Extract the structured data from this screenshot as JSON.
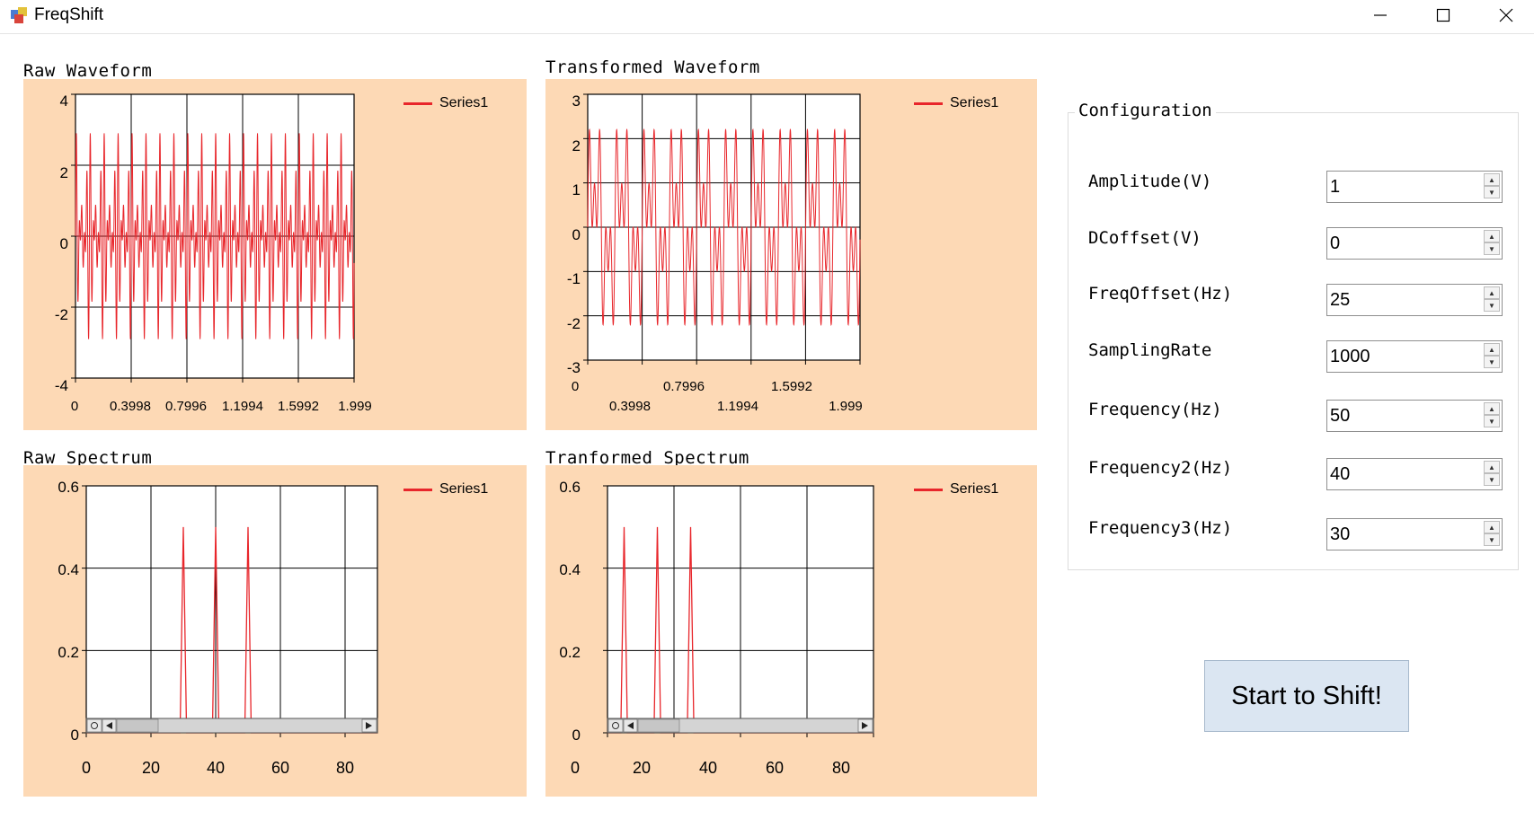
{
  "window": {
    "title": "FreqShift",
    "icon": "app-window-icon"
  },
  "charts": [
    {
      "caption": "Raw Waveform",
      "legend": "Series1",
      "yticks": [
        "4",
        "2",
        "0",
        "-2",
        "-4"
      ],
      "xticks": [
        "0",
        "0.3998",
        "0.7996",
        "1.1994",
        "1.5992",
        "1.999"
      ]
    },
    {
      "caption": "Transformed Waveform",
      "legend": "Series1",
      "yticks": [
        "3",
        "2",
        "1",
        "0",
        "-1",
        "-2",
        "-3"
      ],
      "xticks_upper": [
        "0",
        "0.7996",
        "1.5992"
      ],
      "xticks_lower": [
        "0.3998",
        "1.1994",
        "1.999"
      ]
    },
    {
      "caption": "Raw Spectrum",
      "legend": "Series1",
      "yticks": [
        "0.6",
        "0.4",
        "0.2",
        "0"
      ],
      "xticks": [
        "0",
        "20",
        "40",
        "60",
        "80"
      ]
    },
    {
      "caption": "Tranformed Spectrum",
      "legend": "Series1",
      "yticks": [
        "0.6",
        "0.4",
        "0.2",
        "0"
      ],
      "xticks": [
        "0",
        "20",
        "40",
        "60",
        "80"
      ]
    }
  ],
  "chart_data": [
    {
      "type": "line",
      "title": "Raw Waveform",
      "series": [
        {
          "name": "Series1"
        }
      ],
      "xlim": [
        0,
        1.999
      ],
      "ylim": [
        -4,
        4
      ],
      "grid": true,
      "legend": "top-right",
      "sampling_rate": 1000,
      "components_hz": [
        50,
        40,
        30
      ],
      "y_peak_approx": 2.9
    },
    {
      "type": "line",
      "title": "Transformed Waveform",
      "series": [
        {
          "name": "Series1"
        }
      ],
      "xlim": [
        0,
        1.999
      ],
      "ylim": [
        -3,
        3
      ],
      "grid": true,
      "legend": "top-right",
      "sampling_rate": 1000,
      "components_hz": [
        25,
        15,
        5
      ],
      "y_peak_approx": 2.2
    },
    {
      "type": "line",
      "title": "Raw Spectrum",
      "series": [
        {
          "name": "Series1",
          "x": [
            0,
            29,
            30,
            31,
            39,
            40,
            41,
            49,
            50,
            51,
            90
          ],
          "y": [
            0,
            0,
            0.5,
            0,
            0,
            0.5,
            0,
            0,
            0.5,
            0,
            0
          ]
        }
      ],
      "xlim": [
        0,
        90
      ],
      "ylim": [
        0,
        0.6
      ],
      "grid": true,
      "legend": "top-right"
    },
    {
      "type": "line",
      "title": "Tranformed Spectrum",
      "series": [
        {
          "name": "Series1",
          "x": [
            0,
            4,
            5,
            6,
            14,
            15,
            16,
            24,
            25,
            26,
            80
          ],
          "y": [
            0,
            0,
            0.5,
            0,
            0,
            0.5,
            0,
            0,
            0.5,
            0,
            0
          ]
        }
      ],
      "xlim": [
        0,
        80
      ],
      "ylim": [
        0,
        0.6
      ],
      "grid": true,
      "legend": "top-right"
    }
  ],
  "config": {
    "title": "Configuration",
    "fields": [
      {
        "label": "Amplitude(V)",
        "value": "1"
      },
      {
        "label": "DCoffset(V)",
        "value": "0"
      },
      {
        "label": "FreqOffset(Hz)",
        "value": "25"
      },
      {
        "label": "SamplingRate",
        "value": "1000"
      },
      {
        "label": "Frequency(Hz)",
        "value": "50"
      },
      {
        "label": "Frequency2(Hz)",
        "value": "40"
      },
      {
        "label": "Frequency3(Hz)",
        "value": "30"
      }
    ]
  },
  "start_button": "Start to Shift!",
  "colors": {
    "chart_back": "#fdd9b5",
    "series": "#e8262b",
    "button": "#dbe6f2"
  }
}
